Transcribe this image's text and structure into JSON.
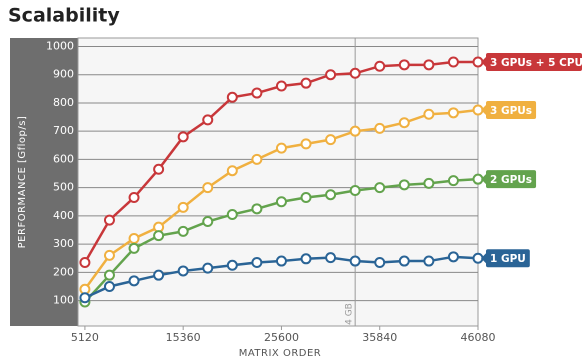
{
  "chart_data": {
    "type": "line",
    "title": "Scalability",
    "x_label": "MATRIX ORDER",
    "y_label": "PERFORMANCE [Gflop/s]",
    "x": [
      5120,
      7680,
      10240,
      12800,
      15360,
      17920,
      20480,
      23040,
      25600,
      28160,
      30720,
      33280,
      35840,
      38400,
      40960,
      43520,
      46080
    ],
    "series": [
      {
        "name": "3 GPUs + 5 CPUs",
        "color": "#c8373a",
        "values": [
          235,
          385,
          465,
          565,
          680,
          740,
          820,
          835,
          860,
          870,
          900,
          905,
          930,
          935,
          935,
          945,
          945
        ]
      },
      {
        "name": "3 GPUs",
        "color": "#f0b040",
        "values": [
          140,
          260,
          320,
          360,
          430,
          500,
          560,
          600,
          640,
          655,
          670,
          700,
          710,
          730,
          760,
          765,
          775
        ]
      },
      {
        "name": "2 GPUs",
        "color": "#63a34d",
        "values": [
          95,
          190,
          285,
          330,
          345,
          380,
          405,
          425,
          450,
          465,
          475,
          490,
          500,
          510,
          515,
          525,
          530
        ]
      },
      {
        "name": "1 GPU",
        "color": "#2a6496",
        "values": [
          110,
          150,
          170,
          190,
          205,
          215,
          225,
          235,
          240,
          248,
          252,
          240,
          235,
          240,
          240,
          255,
          250
        ]
      }
    ],
    "xlim": [
      4400,
      46080
    ],
    "ylim": [
      10,
      1030
    ],
    "xticks": [
      5120,
      15360,
      25600,
      35840,
      46080
    ],
    "yticks": [
      100,
      200,
      300,
      400,
      500,
      600,
      700,
      800,
      900,
      1000
    ],
    "grid": true,
    "annotations": [
      {
        "x": 33280,
        "label": "4 GB"
      }
    ]
  }
}
